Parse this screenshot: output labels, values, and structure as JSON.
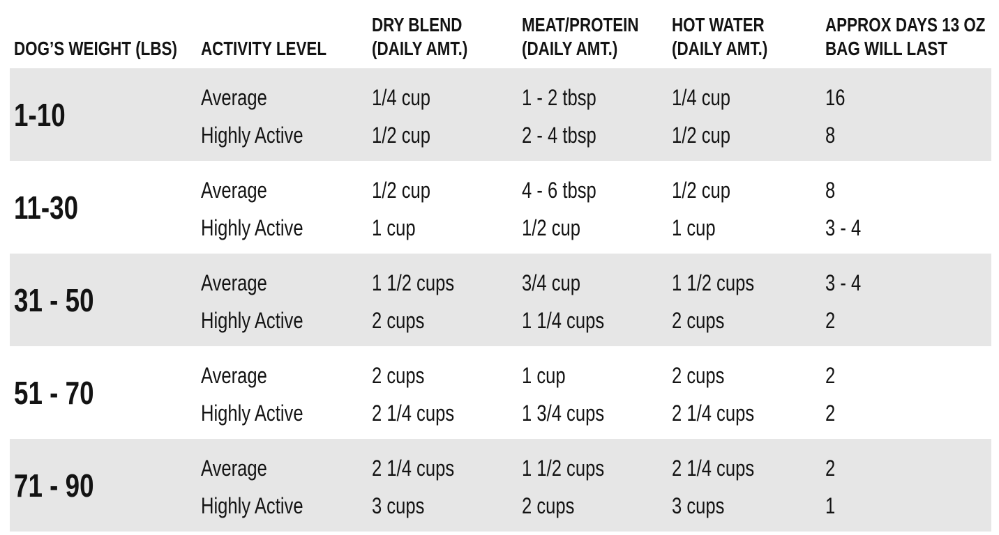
{
  "colors": {
    "stripe_gray": "#e6e6e6",
    "background": "#ffffff",
    "text": "#131313"
  },
  "chart_data": {
    "type": "table",
    "title": "",
    "legend_position": "none",
    "layout": {
      "striped_row_indexes": [
        0,
        2,
        4
      ],
      "stripe_color": "#e6e6e6",
      "rows_per_group": 2
    },
    "columns_flat": [
      "DOG’S WEIGHT (LBS)",
      "ACTIVITY LEVEL",
      "DRY BLEND (DAILY AMT.)",
      "MEAT/PROTEIN (DAILY AMT.)",
      "HOT WATER (DAILY AMT.)",
      "APPROX DAYS 13 OZ BAG WILL LAST"
    ],
    "header_lines": [
      [
        "DOG’S WEIGHT (LBS)"
      ],
      [
        "ACTIVITY LEVEL"
      ],
      [
        "DRY BLEND",
        "(DAILY AMT.)"
      ],
      [
        "MEAT/PROTEIN",
        "(DAILY AMT.)"
      ],
      [
        "HOT WATER",
        "(DAILY AMT.)"
      ],
      [
        "APPROX DAYS 13 OZ",
        "BAG WILL LAST"
      ]
    ],
    "rows": [
      {
        "weight": "1-10",
        "entries": [
          {
            "activity": "Average",
            "dry_blend": "1/4 cup",
            "meat_protein": "1 - 2 tbsp",
            "hot_water": "1/4 cup",
            "days": "16"
          },
          {
            "activity": "Highly Active",
            "dry_blend": "1/2 cup",
            "meat_protein": "2 - 4 tbsp",
            "hot_water": "1/2 cup",
            "days": "8"
          }
        ]
      },
      {
        "weight": "11-30",
        "entries": [
          {
            "activity": "Average",
            "dry_blend": "1/2 cup",
            "meat_protein": "4 - 6 tbsp",
            "hot_water": "1/2 cup",
            "days": "8"
          },
          {
            "activity": "Highly Active",
            "dry_blend": "1 cup",
            "meat_protein": "1/2 cup",
            "hot_water": "1 cup",
            "days": "3 - 4"
          }
        ]
      },
      {
        "weight": "31 - 50",
        "entries": [
          {
            "activity": "Average",
            "dry_blend": "1 1/2 cups",
            "meat_protein": "3/4 cup",
            "hot_water": "1 1/2 cups",
            "days": "3 - 4"
          },
          {
            "activity": "Highly Active",
            "dry_blend": "2 cups",
            "meat_protein": "1 1/4 cups",
            "hot_water": "2 cups",
            "days": "2"
          }
        ]
      },
      {
        "weight": "51 - 70",
        "entries": [
          {
            "activity": "Average",
            "dry_blend": "2 cups",
            "meat_protein": "1 cup",
            "hot_water": "2 cups",
            "days": "2"
          },
          {
            "activity": "Highly Active",
            "dry_blend": "2 1/4 cups",
            "meat_protein": "1 3/4 cups",
            "hot_water": "2 1/4 cups",
            "days": "2"
          }
        ]
      },
      {
        "weight": "71 - 90",
        "entries": [
          {
            "activity": "Average",
            "dry_blend": "2 1/4 cups",
            "meat_protein": "1 1/2 cups",
            "hot_water": "2 1/4 cups",
            "days": "2"
          },
          {
            "activity": "Highly Active",
            "dry_blend": "3 cups",
            "meat_protein": "2 cups",
            "hot_water": "3 cups",
            "days": "1"
          }
        ]
      }
    ]
  }
}
